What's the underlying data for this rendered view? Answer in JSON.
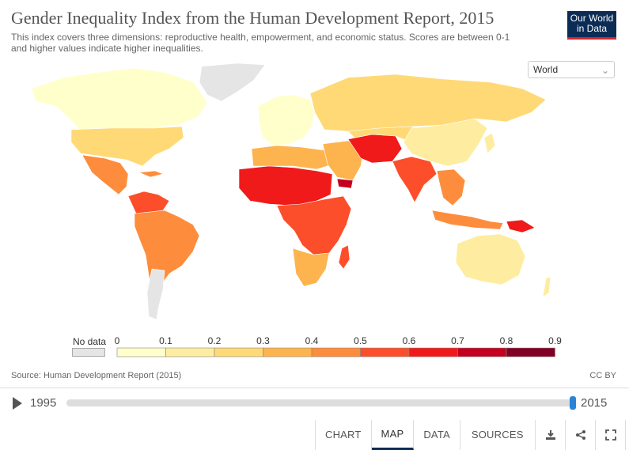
{
  "title": "Gender Inequality Index from the Human Development Report, 2015",
  "subtitle_line1": "This index covers three dimensions: reproductive health, empowerment, and economic status. Scores are between 0-1",
  "subtitle_line2": "and higher values indicate higher inequalities.",
  "logo": {
    "line1": "Our World",
    "line2": "in Data"
  },
  "region_select": {
    "value": "World",
    "icon": "chevron-down-icon"
  },
  "legend": {
    "no_data_label": "No data",
    "ticks": [
      "0",
      "0.1",
      "0.2",
      "0.3",
      "0.4",
      "0.5",
      "0.6",
      "0.7",
      "0.8",
      "0.9"
    ],
    "colors": [
      "#ffffcc",
      "#feeda0",
      "#fed976",
      "#fdb44e",
      "#fd8d3c",
      "#fc4e2a",
      "#f01a1a",
      "#c3001f",
      "#800026"
    ],
    "no_data_color": "#e5e5e5"
  },
  "source": "Source: Human Development Report (2015)",
  "license": "CC BY",
  "timeline": {
    "start": "1995",
    "end": "2015",
    "position": 1.0
  },
  "tabs": [
    "CHART",
    "MAP",
    "DATA",
    "SOURCES"
  ],
  "active_tab": "MAP",
  "footer_icons": [
    "download-icon",
    "share-icon",
    "fullscreen-icon"
  ]
}
